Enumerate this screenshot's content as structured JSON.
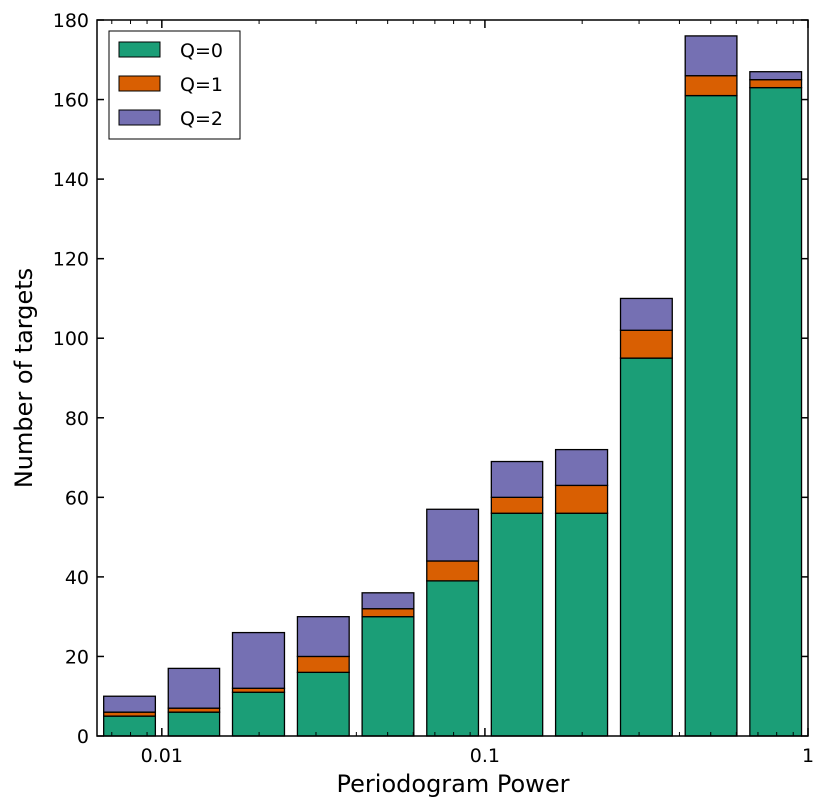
{
  "chart_data": {
    "type": "bar",
    "stacked": true,
    "xscale": "log",
    "xlabel": "Periodogram Power",
    "ylabel": "Number of targets",
    "ylim": [
      0,
      180
    ],
    "xlim": [
      0.0063,
      1.0
    ],
    "yticks": [
      0,
      20,
      40,
      60,
      80,
      100,
      120,
      140,
      160,
      180
    ],
    "xticks": [
      {
        "value": 0.01,
        "label": "0.01"
      },
      {
        "value": 0.1,
        "label": "0.1"
      },
      {
        "value": 1,
        "label": "1"
      }
    ],
    "legend_position": "top-left",
    "bin_edges": [
      0.00631,
      0.01,
      0.0158,
      0.0251,
      0.0398,
      0.0631,
      0.1,
      0.158,
      0.251,
      0.398,
      0.631,
      1.0
    ],
    "series": [
      {
        "name": "Q=0",
        "color": "#1b9e77",
        "values": [
          5,
          6,
          11,
          16,
          30,
          39,
          56,
          56,
          95,
          161,
          163
        ]
      },
      {
        "name": "Q=1",
        "color": "#d95f02",
        "values": [
          1,
          1,
          1,
          4,
          2,
          5,
          4,
          7,
          7,
          5,
          2
        ]
      },
      {
        "name": "Q=2",
        "color": "#7570b3",
        "values": [
          4,
          10,
          14,
          10,
          4,
          13,
          9,
          9,
          8,
          10,
          2
        ]
      }
    ]
  }
}
